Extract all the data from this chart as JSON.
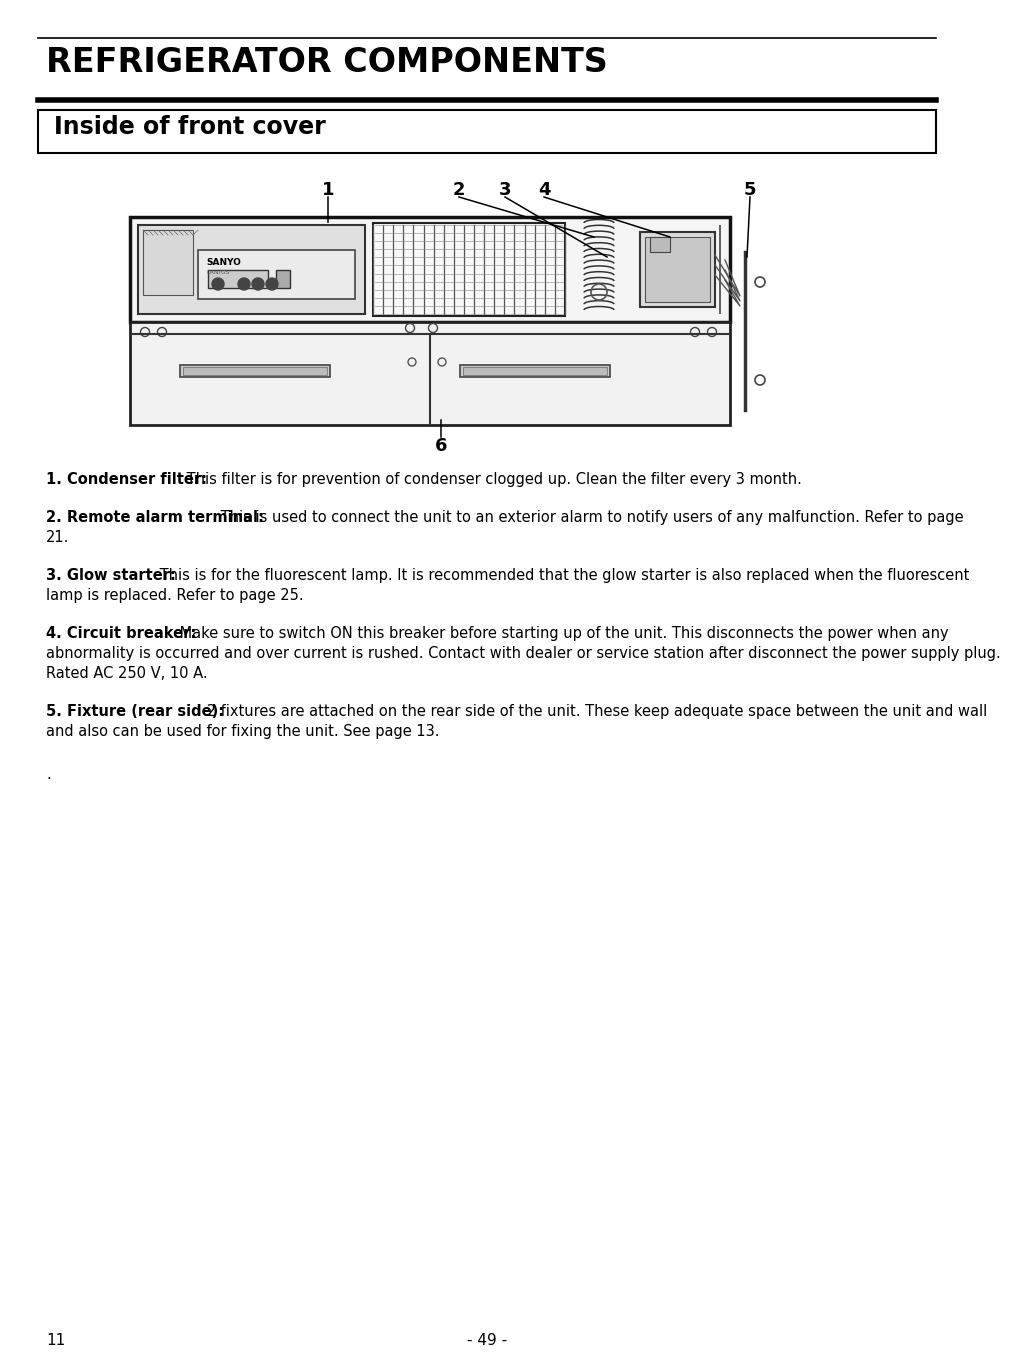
{
  "title": "REFRIGERATOR COMPONENTS",
  "subtitle": "Inside of front cover",
  "page_number": "- 49 -",
  "page_left": "11",
  "background_color": "#ffffff",
  "title_fontsize": 24,
  "subtitle_fontsize": 17,
  "body_fontsize": 10.5,
  "items": [
    {
      "label": "1. Condenser filter:",
      "text": "  This filter is for prevention of condenser clogged up.   Clean the filter every 3 month."
    },
    {
      "label": "2. Remote alarm terminal:",
      "text": "   This is used to connect the unit to an exterior alarm to notify users of any malfunction.   Refer to page 21."
    },
    {
      "label": "3. Glow starter:",
      "text": "  This is for the fluorescent lamp.   It is recommended that the glow starter is also replaced when the fluorescent lamp is replaced.   Refer to page 25."
    },
    {
      "label": "4. Circuit breaker:",
      "text": "   Make sure to switch ON this breaker before starting up of the unit.   This disconnects the power when any abnormality is occurred and over current is rushed.   Contact with dealer or service station after disconnect the power supply plug.   Rated AC 250 V, 10 A."
    },
    {
      "label": "5. Fixture (rear side):",
      "text": "   2 fixtures are attached on the rear side of the unit.   These keep adequate space between the unit and wall and also can be used for fixing the unit.   See page 13."
    }
  ]
}
